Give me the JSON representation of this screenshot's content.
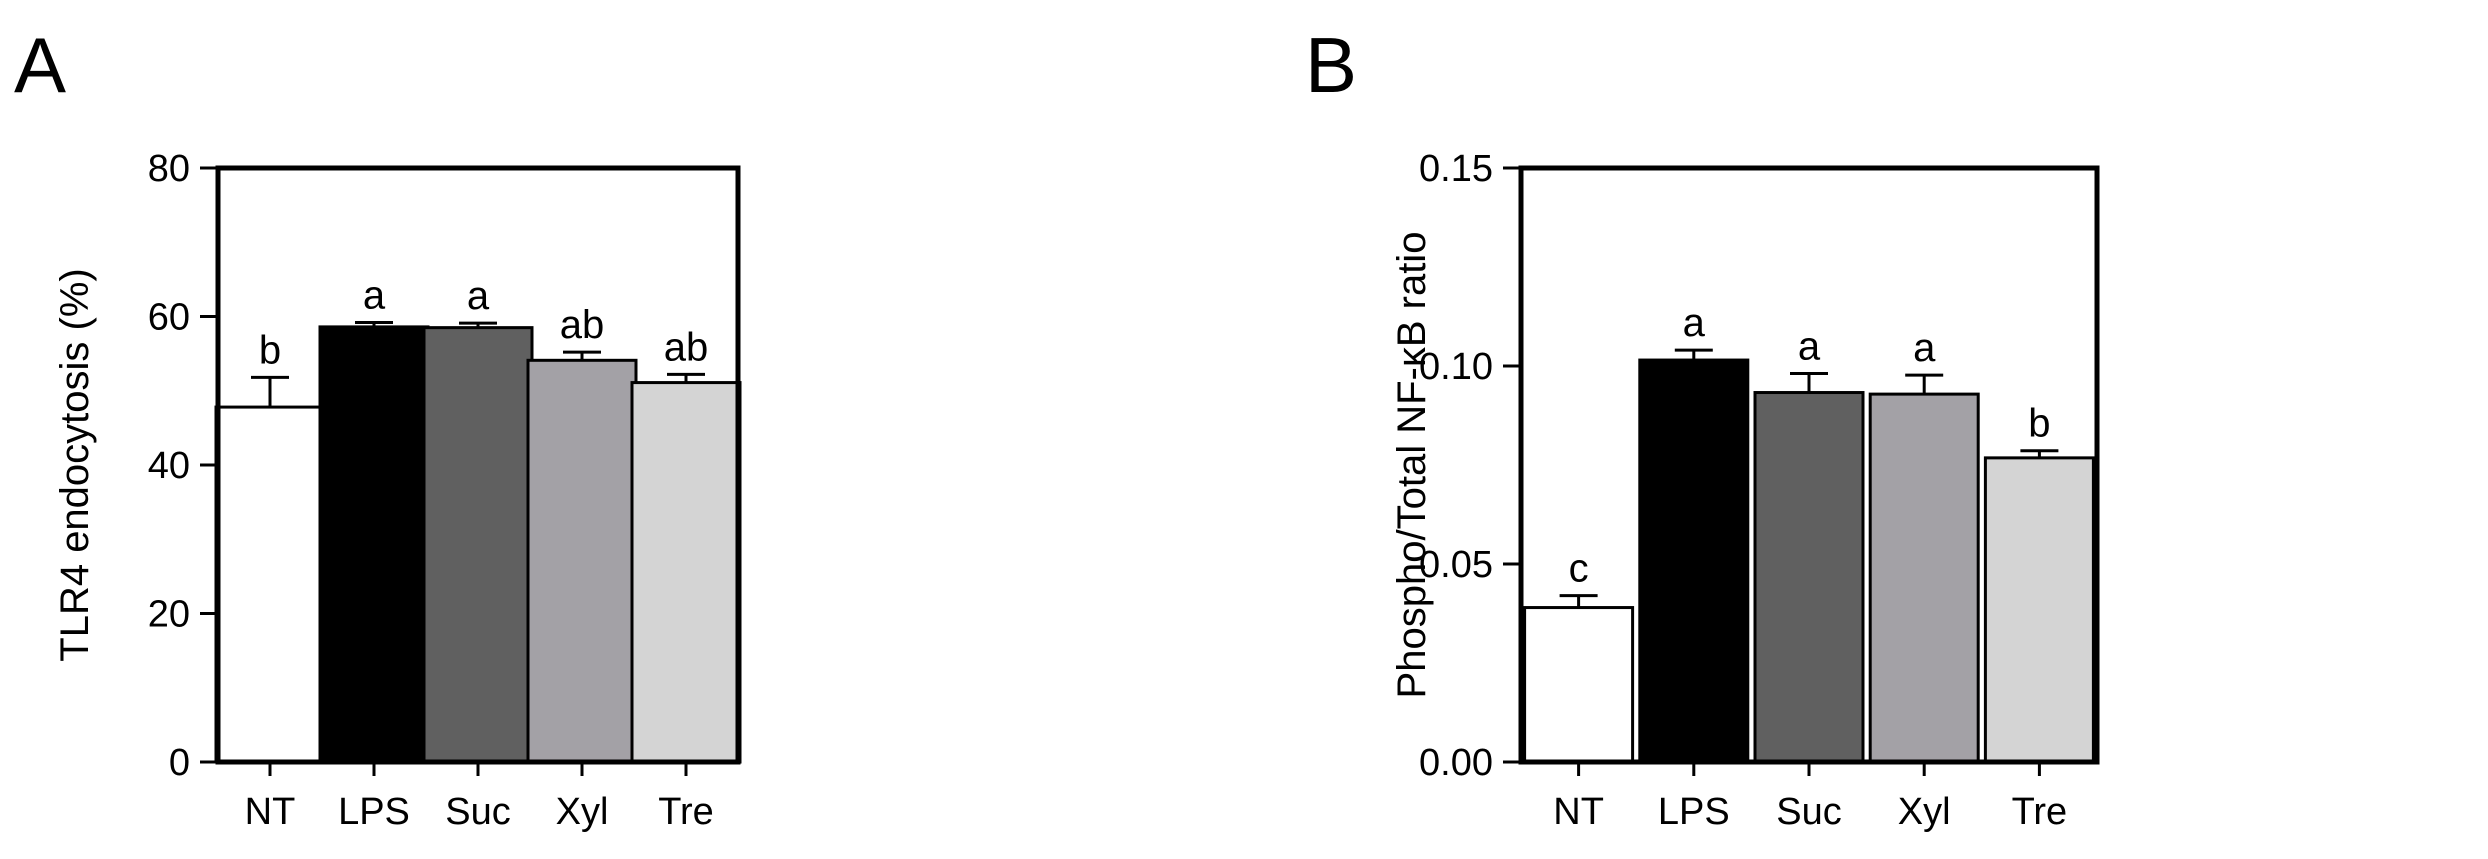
{
  "chart_data": [
    {
      "panel_label": "A",
      "type": "bar",
      "categories": [
        "NT",
        "LPS",
        "Suc",
        "Xyl",
        "Tre"
      ],
      "values": [
        47.8,
        58.6,
        58.5,
        54.1,
        51.1
      ],
      "errors": [
        4.0,
        0.6,
        0.6,
        1.1,
        1.1
      ],
      "significance": [
        "b",
        "a",
        "a",
        "ab",
        "ab"
      ],
      "bar_colors": [
        "#ffffff",
        "#000000",
        "#606060",
        "#a3a1a6",
        "#d4d4d4"
      ],
      "title": "",
      "xlabel": "",
      "ylabel": "TLR4 endocytosis (%)",
      "ylim": [
        0,
        80
      ],
      "yticks": [
        0,
        20,
        40,
        60,
        80
      ],
      "ytick_labels": [
        "0",
        "20",
        "40",
        "60",
        "80"
      ],
      "grid": false
    },
    {
      "panel_label": "B",
      "type": "bar",
      "categories": [
        "NT",
        "LPS",
        "Suc",
        "Xyl",
        "Tre"
      ],
      "values": [
        0.039,
        0.1015,
        0.0933,
        0.0929,
        0.0768
      ],
      "errors": [
        0.003,
        0.0025,
        0.0048,
        0.0048,
        0.0018
      ],
      "significance": [
        "c",
        "a",
        "a",
        "a",
        "b"
      ],
      "bar_colors": [
        "#ffffff",
        "#000000",
        "#606060",
        "#a3a1a6",
        "#d4d4d4"
      ],
      "title": "",
      "xlabel": "",
      "ylabel": "Phospho/Total NF-κB ratio",
      "ylim": [
        0,
        0.15
      ],
      "yticks": [
        0,
        0.05,
        0.1,
        0.15
      ],
      "ytick_labels": [
        "0.00",
        "0.05",
        "0.10",
        "0.15"
      ],
      "grid": false
    }
  ]
}
